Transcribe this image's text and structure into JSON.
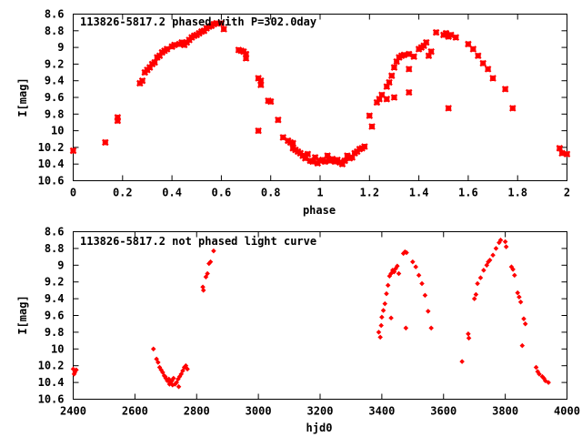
{
  "chart_data": [
    {
      "type": "scatter",
      "title": "113826-5817.2 phased with P=302.0day",
      "xlabel": "phase",
      "ylabel": "I[mag]",
      "xlim": [
        0,
        2
      ],
      "ylim": [
        8.6,
        10.6
      ],
      "y_inverted": true,
      "grid": false,
      "marker_color": "#ff0000",
      "marker": "star-large",
      "x_ticks": [
        "0",
        "0.2",
        "0.4",
        "0.6",
        "0.8",
        "1",
        "1.2",
        "1.4",
        "1.6",
        "1.8",
        "2"
      ],
      "y_ticks": [
        "8.6",
        "8.8",
        "9",
        "9.2",
        "9.4",
        "9.6",
        "9.8",
        "10",
        "10.2",
        "10.4",
        "10.6"
      ],
      "points": [
        [
          0.0,
          10.24
        ],
        [
          0.13,
          10.14
        ],
        [
          0.18,
          9.88
        ],
        [
          0.18,
          9.84
        ],
        [
          0.27,
          9.43
        ],
        [
          0.28,
          9.4
        ],
        [
          0.29,
          9.3
        ],
        [
          0.3,
          9.27
        ],
        [
          0.31,
          9.24
        ],
        [
          0.32,
          9.2
        ],
        [
          0.33,
          9.18
        ],
        [
          0.34,
          9.12
        ],
        [
          0.35,
          9.1
        ],
        [
          0.36,
          9.06
        ],
        [
          0.37,
          9.04
        ],
        [
          0.38,
          9.02
        ],
        [
          0.4,
          8.99
        ],
        [
          0.41,
          8.97
        ],
        [
          0.43,
          8.96
        ],
        [
          0.44,
          8.94
        ],
        [
          0.45,
          8.97
        ],
        [
          0.46,
          8.94
        ],
        [
          0.47,
          8.91
        ],
        [
          0.48,
          8.88
        ],
        [
          0.49,
          8.86
        ],
        [
          0.5,
          8.85
        ],
        [
          0.51,
          8.83
        ],
        [
          0.52,
          8.81
        ],
        [
          0.53,
          8.8
        ],
        [
          0.54,
          8.77
        ],
        [
          0.55,
          8.75
        ],
        [
          0.56,
          8.74
        ],
        [
          0.57,
          8.72
        ],
        [
          0.58,
          8.71
        ],
        [
          0.6,
          8.71
        ],
        [
          0.61,
          8.78
        ],
        [
          0.67,
          9.03
        ],
        [
          0.68,
          9.04
        ],
        [
          0.69,
          9.05
        ],
        [
          0.7,
          9.08
        ],
        [
          0.7,
          9.13
        ],
        [
          0.75,
          9.37
        ],
        [
          0.76,
          9.4
        ],
        [
          0.76,
          9.45
        ],
        [
          0.75,
          10.0
        ],
        [
          0.79,
          9.64
        ],
        [
          0.8,
          9.65
        ],
        [
          0.83,
          9.87
        ],
        [
          0.85,
          10.08
        ],
        [
          0.87,
          10.12
        ],
        [
          0.88,
          10.14
        ],
        [
          0.89,
          10.15
        ],
        [
          0.89,
          10.21
        ],
        [
          0.9,
          10.23
        ],
        [
          0.91,
          10.25
        ],
        [
          0.92,
          10.27
        ],
        [
          0.93,
          10.3
        ],
        [
          0.94,
          10.33
        ],
        [
          0.95,
          10.28
        ],
        [
          0.96,
          10.36
        ],
        [
          0.97,
          10.37
        ],
        [
          0.98,
          10.32
        ],
        [
          0.99,
          10.39
        ],
        [
          1.0,
          10.36
        ],
        [
          1.01,
          10.35
        ],
        [
          1.02,
          10.37
        ],
        [
          1.03,
          10.3
        ],
        [
          1.04,
          10.36
        ],
        [
          1.05,
          10.34
        ],
        [
          1.06,
          10.37
        ],
        [
          1.07,
          10.35
        ],
        [
          1.08,
          10.38
        ],
        [
          1.09,
          10.4
        ],
        [
          1.1,
          10.36
        ],
        [
          1.11,
          10.3
        ],
        [
          1.12,
          10.33
        ],
        [
          1.13,
          10.32
        ],
        [
          1.14,
          10.27
        ],
        [
          1.15,
          10.25
        ],
        [
          1.16,
          10.22
        ],
        [
          1.17,
          10.21
        ],
        [
          1.18,
          10.19
        ],
        [
          1.2,
          9.82
        ],
        [
          1.21,
          9.95
        ],
        [
          1.23,
          9.66
        ],
        [
          1.24,
          9.62
        ],
        [
          1.25,
          9.57
        ],
        [
          1.27,
          9.47
        ],
        [
          1.28,
          9.42
        ],
        [
          1.29,
          9.34
        ],
        [
          1.3,
          9.24
        ],
        [
          1.31,
          9.17
        ],
        [
          1.32,
          9.12
        ],
        [
          1.33,
          9.1
        ],
        [
          1.34,
          9.09
        ],
        [
          1.36,
          9.08
        ],
        [
          1.36,
          9.26
        ],
        [
          1.38,
          9.11
        ],
        [
          1.4,
          9.02
        ],
        [
          1.41,
          9.0
        ],
        [
          1.42,
          8.98
        ],
        [
          1.43,
          8.94
        ],
        [
          1.44,
          9.1
        ],
        [
          1.45,
          9.05
        ],
        [
          1.36,
          9.54
        ],
        [
          1.3,
          9.6
        ],
        [
          1.27,
          9.62
        ],
        [
          1.47,
          8.82
        ],
        [
          1.5,
          8.85
        ],
        [
          1.51,
          8.83
        ],
        [
          1.52,
          8.87
        ],
        [
          1.53,
          8.85
        ],
        [
          1.55,
          8.88
        ],
        [
          1.52,
          9.73
        ],
        [
          1.6,
          8.96
        ],
        [
          1.62,
          9.02
        ],
        [
          1.64,
          9.1
        ],
        [
          1.66,
          9.19
        ],
        [
          1.68,
          9.26
        ],
        [
          1.7,
          9.37
        ],
        [
          1.75,
          9.5
        ],
        [
          1.78,
          9.73
        ],
        [
          1.97,
          10.21
        ],
        [
          1.98,
          10.27
        ],
        [
          2.0,
          10.28
        ]
      ]
    },
    {
      "type": "scatter",
      "title": "113826-5817.2 not phased light curve",
      "xlabel": "hjd0",
      "ylabel": "I[mag]",
      "xlim": [
        2400,
        4000
      ],
      "ylim": [
        8.6,
        10.6
      ],
      "y_inverted": true,
      "grid": false,
      "marker_color": "#ff0000",
      "marker": "diamond-small",
      "x_ticks": [
        "2400",
        "2600",
        "2800",
        "3000",
        "3200",
        "3400",
        "3600",
        "3800",
        "4000"
      ],
      "y_ticks": [
        "8.6",
        "8.8",
        "9",
        "9.2",
        "9.4",
        "9.6",
        "9.8",
        "10",
        "10.2",
        "10.4",
        "10.6"
      ],
      "points": [
        [
          2400,
          10.24
        ],
        [
          2405,
          10.28
        ],
        [
          2410,
          10.25
        ],
        [
          2403,
          10.3
        ],
        [
          2660,
          10.0
        ],
        [
          2670,
          10.12
        ],
        [
          2675,
          10.16
        ],
        [
          2680,
          10.22
        ],
        [
          2685,
          10.25
        ],
        [
          2690,
          10.28
        ],
        [
          2695,
          10.32
        ],
        [
          2700,
          10.35
        ],
        [
          2705,
          10.38
        ],
        [
          2710,
          10.36
        ],
        [
          2715,
          10.4
        ],
        [
          2720,
          10.38
        ],
        [
          2725,
          10.35
        ],
        [
          2730,
          10.42
        ],
        [
          2735,
          10.4
        ],
        [
          2740,
          10.36
        ],
        [
          2745,
          10.33
        ],
        [
          2750,
          10.3
        ],
        [
          2755,
          10.26
        ],
        [
          2760,
          10.22
        ],
        [
          2765,
          10.2
        ],
        [
          2770,
          10.24
        ],
        [
          2698,
          10.33
        ],
        [
          2712,
          10.42
        ],
        [
          2722,
          10.43
        ],
        [
          2742,
          10.45
        ],
        [
          2820,
          9.26
        ],
        [
          2822,
          9.3
        ],
        [
          2830,
          9.14
        ],
        [
          2835,
          9.1
        ],
        [
          2840,
          8.98
        ],
        [
          2845,
          8.96
        ],
        [
          2855,
          8.83
        ],
        [
          3390,
          9.8
        ],
        [
          3395,
          9.86
        ],
        [
          3398,
          9.72
        ],
        [
          3400,
          9.62
        ],
        [
          3405,
          9.54
        ],
        [
          3410,
          9.46
        ],
        [
          3415,
          9.34
        ],
        [
          3420,
          9.24
        ],
        [
          3425,
          9.13
        ],
        [
          3430,
          9.1
        ],
        [
          3435,
          9.06
        ],
        [
          3440,
          9.08
        ],
        [
          3445,
          9.04
        ],
        [
          3450,
          9.01
        ],
        [
          3455,
          9.1
        ],
        [
          3430,
          9.63
        ],
        [
          3470,
          8.86
        ],
        [
          3475,
          8.84
        ],
        [
          3480,
          8.85
        ],
        [
          3478,
          9.75
        ],
        [
          3500,
          8.96
        ],
        [
          3510,
          9.02
        ],
        [
          3520,
          9.12
        ],
        [
          3530,
          9.22
        ],
        [
          3540,
          9.36
        ],
        [
          3550,
          9.55
        ],
        [
          3560,
          9.75
        ],
        [
          3660,
          10.15
        ],
        [
          3680,
          9.82
        ],
        [
          3682,
          9.87
        ],
        [
          3700,
          9.4
        ],
        [
          3705,
          9.35
        ],
        [
          3710,
          9.22
        ],
        [
          3720,
          9.15
        ],
        [
          3730,
          9.06
        ],
        [
          3740,
          9.0
        ],
        [
          3745,
          8.96
        ],
        [
          3750,
          8.94
        ],
        [
          3760,
          8.88
        ],
        [
          3770,
          8.8
        ],
        [
          3780,
          8.73
        ],
        [
          3785,
          8.7
        ],
        [
          3800,
          8.72
        ],
        [
          3803,
          8.78
        ],
        [
          3820,
          9.02
        ],
        [
          3825,
          9.05
        ],
        [
          3830,
          9.12
        ],
        [
          3840,
          9.33
        ],
        [
          3845,
          9.38
        ],
        [
          3850,
          9.44
        ],
        [
          3860,
          9.64
        ],
        [
          3865,
          9.7
        ],
        [
          3855,
          9.96
        ],
        [
          3900,
          10.22
        ],
        [
          3905,
          10.27
        ],
        [
          3910,
          10.3
        ],
        [
          3920,
          10.33
        ],
        [
          3925,
          10.35
        ],
        [
          3930,
          10.38
        ],
        [
          3940,
          10.4
        ]
      ]
    }
  ]
}
